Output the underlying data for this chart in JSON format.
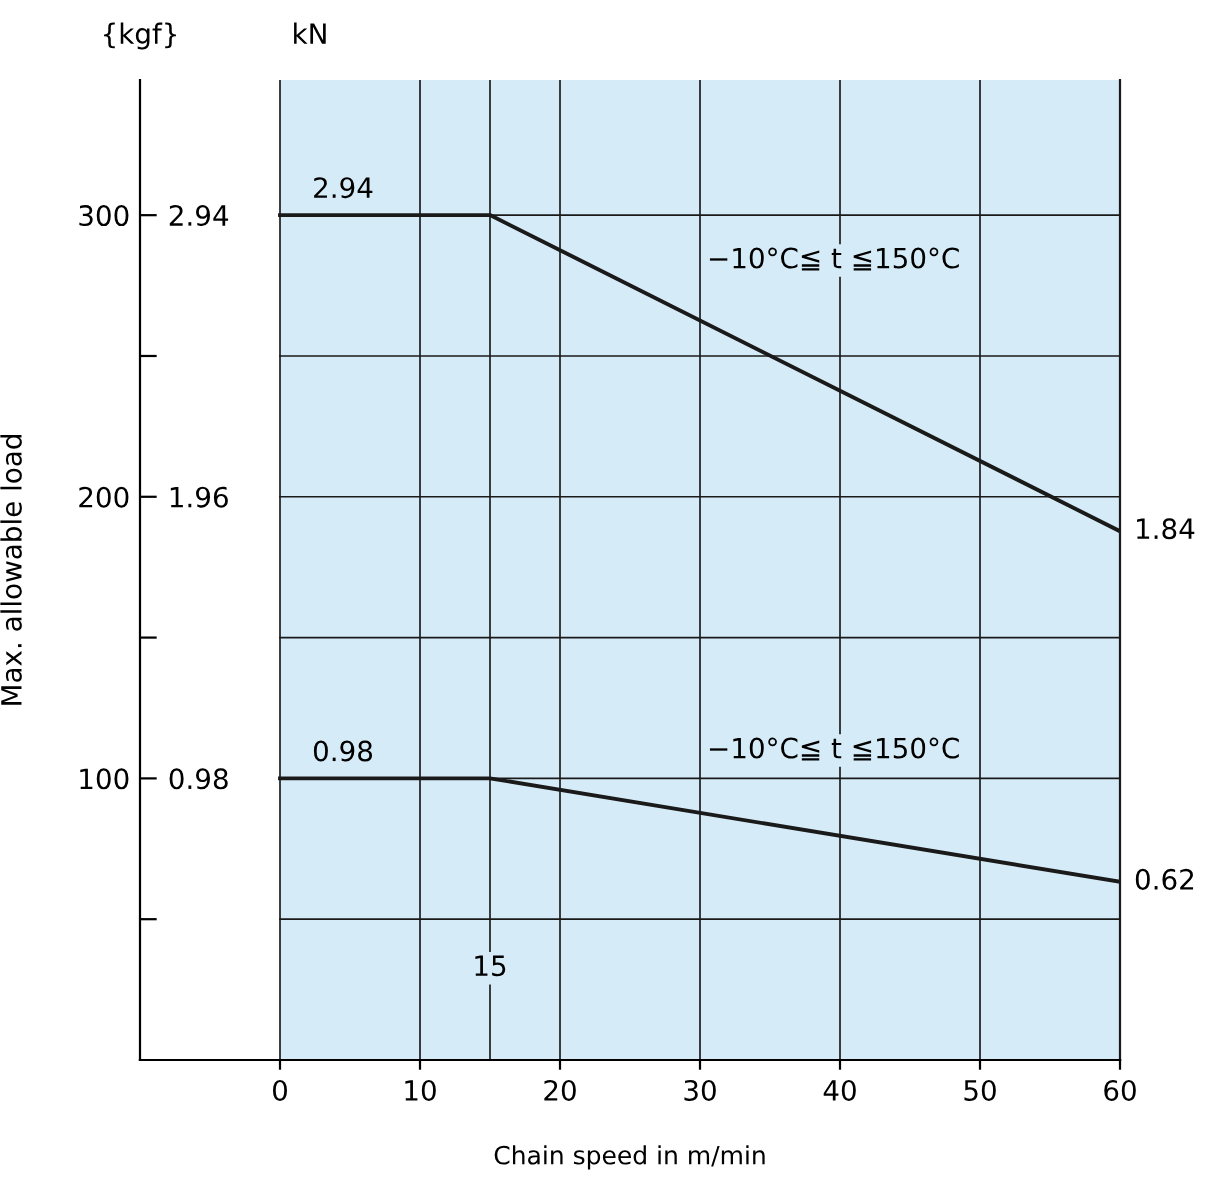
{
  "chart_data": {
    "type": "line",
    "xlabel": "Chain speed in m/min",
    "ylabel": "Max. allowable load",
    "y2label": "kN",
    "x": [
      0,
      15,
      60
    ],
    "series": [
      {
        "color": "#1a1a1a",
        "axis": "y2",
        "values": [
          2.94,
          2.94,
          1.84
        ],
        "value_labels": [
          "2.94",
          null,
          "1.84"
        ]
      },
      {
        "color": "#1a1a1a",
        "axis": "y2",
        "values": [
          0.98,
          0.98,
          0.62
        ],
        "value_labels": [
          "0.98",
          null,
          "0.62"
        ]
      }
    ],
    "xlim": [
      -10,
      60
    ],
    "xticks": [
      0,
      10,
      20,
      30,
      40,
      50,
      60
    ],
    "ylim": [
      0,
      348
    ],
    "yticks": [
      {
        "value": 50,
        "label": null
      },
      100,
      {
        "value": 150,
        "label": null
      },
      200,
      {
        "value": 250,
        "label": null
      },
      300
    ],
    "y2lim": [
      0,
      3.41
    ],
    "y2ticks": [
      0.98,
      1.96,
      2.94
    ],
    "ref_lines": [
      {
        "axis": "x",
        "value": 15,
        "label": "15",
        "color": "#1a1a1a"
      }
    ],
    "bands": [
      {
        "axis": "x",
        "from": 0,
        "to": 60,
        "color": "#d5ecf8"
      }
    ],
    "grid": true,
    "marker": "none",
    "line_style": "solid",
    "annotations": [
      "{kgf}",
      "−10°C≦ t ≦150°C",
      "−10°C≦ t ≦150°C"
    ]
  }
}
